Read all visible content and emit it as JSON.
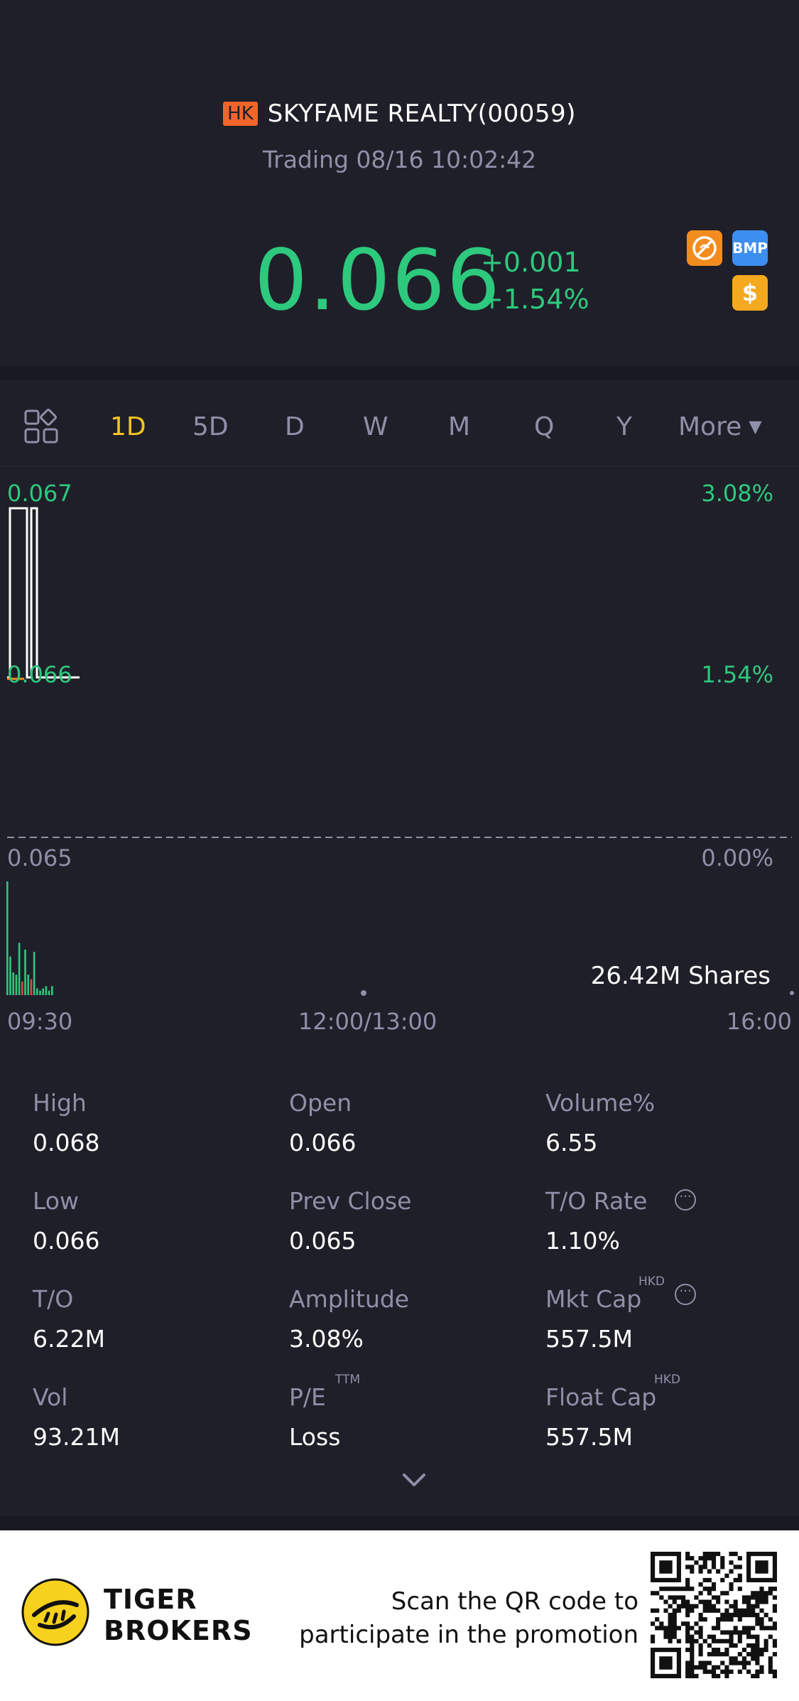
{
  "header": {
    "market_badge": "HK",
    "stock_name": "SKYFAME REALTY(00059)",
    "status": "Trading 08/16 10:02:42",
    "price": "0.066",
    "change": "+0.001",
    "change_pct": "+1.54%",
    "badges": [
      "no-short-icon",
      "bmp-icon",
      "dollar-icon"
    ],
    "bmp_text": "BMP",
    "dollar_text": "$"
  },
  "tabs": {
    "items": [
      "1D",
      "5D",
      "D",
      "W",
      "M",
      "Q",
      "Y"
    ],
    "active": "1D",
    "more": "More"
  },
  "chart": {
    "y_left": [
      "0.067",
      "0.066",
      "0.065"
    ],
    "y_right": [
      "3.08%",
      "1.54%",
      "0.00%"
    ],
    "volume_label": "26.42M Shares",
    "time_labels": [
      "09:30",
      "12:00/13:00",
      "16:00"
    ]
  },
  "chart_data": {
    "type": "line",
    "series": [
      {
        "values": [
          0.066,
          0.067,
          0.067,
          0.067,
          0.066,
          0.067,
          0.066,
          0.066,
          0.066
        ]
      }
    ],
    "volume_bars": [
      100,
      34,
      20,
      18,
      46,
      12,
      40,
      18,
      14,
      38,
      6,
      4,
      6,
      8,
      4,
      8
    ],
    "ylim": [
      0.065,
      0.067
    ],
    "prev_close": 0.065,
    "xlabels": [
      "09:30",
      "12:00/13:00",
      "16:00"
    ],
    "colors": {
      "price_line": "#ffffff",
      "up": "#2dc97d",
      "down": "#e0474c",
      "prev_close_line": "#8e90a8"
    }
  },
  "stats": [
    {
      "label": "High",
      "value": "0.068"
    },
    {
      "label": "Open",
      "value": "0.066"
    },
    {
      "label": "Volume%",
      "value": "6.55"
    },
    {
      "label": "Low",
      "value": "0.066"
    },
    {
      "label": "Prev Close",
      "value": "0.065"
    },
    {
      "label": "T/O Rate",
      "value": "1.10%"
    },
    {
      "label": "T/O",
      "value": "6.22M"
    },
    {
      "label": "Amplitude",
      "value": "3.08%"
    },
    {
      "label": "Mkt Cap",
      "value": "557.5M",
      "sup": "HKD"
    },
    {
      "label": "Vol",
      "value": "93.21M"
    },
    {
      "label": "P/E",
      "value": "Loss",
      "sup": "TTM"
    },
    {
      "label": "Float Cap",
      "value": "557.5M",
      "sup": "HKD"
    }
  ],
  "footer": {
    "brand_line1": "TIGER",
    "brand_line2": "BROKERS",
    "promo_line1": "Scan the QR code to",
    "promo_line2": "participate in the promotion"
  },
  "colors": {
    "background": "#1f1f29",
    "up_green": "#2dc97d",
    "active_tab": "#f6c324",
    "muted": "#8e90a8",
    "hk_badge": "#f0652a"
  }
}
